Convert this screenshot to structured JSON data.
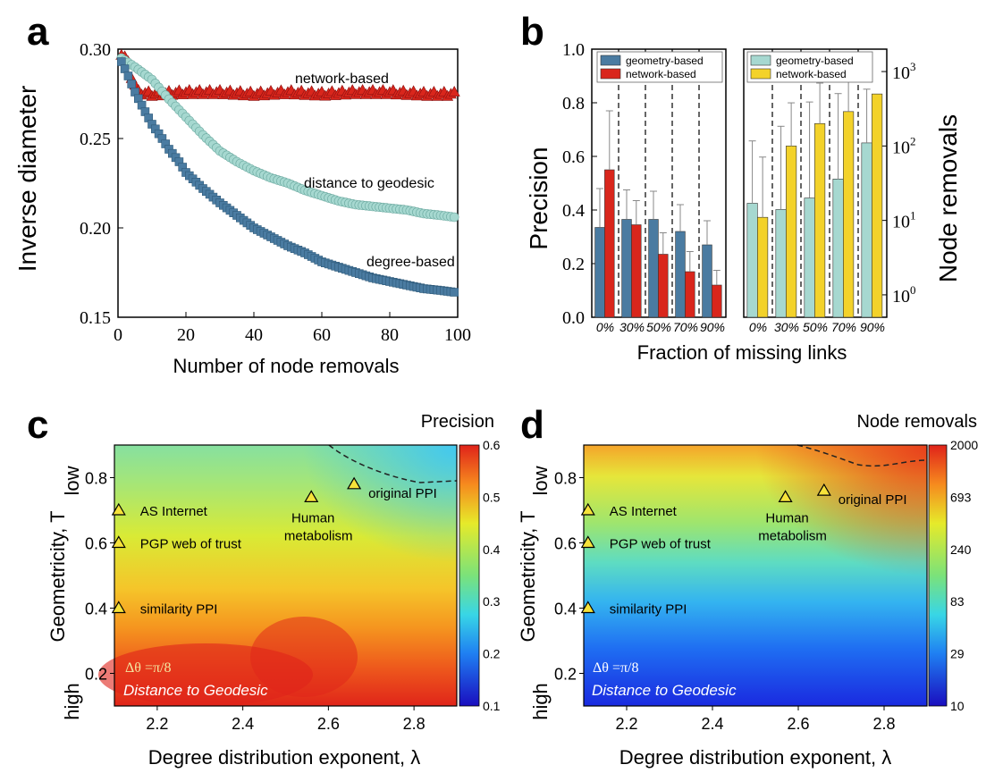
{
  "panels": {
    "a": "a",
    "b": "b",
    "c": "c",
    "d": "d"
  },
  "colors": {
    "degree": "#4a7ba1",
    "distance": "#a6d8d0",
    "network": "#d9261c",
    "geom_b": "#4a7ba1",
    "net_b": "#d9261c",
    "geom_b2": "#a6d8d0",
    "net_b2": "#f3d22a"
  },
  "chart_data": [
    {
      "id": "a",
      "type": "scatter",
      "xlabel": "Number of node removals",
      "ylabel": "Inverse diameter",
      "xlim": [
        0,
        100
      ],
      "ylim": [
        0.15,
        0.3
      ],
      "xticks": [
        "0",
        "20",
        "40",
        "60",
        "80",
        "100"
      ],
      "yticks": [
        "0.15",
        "0.20",
        "0.25",
        "0.30"
      ],
      "series": [
        {
          "name": "network-based",
          "marker": "triangle",
          "x": [
            1,
            2,
            3,
            4,
            5,
            6,
            10,
            20,
            30,
            40,
            50,
            60,
            70,
            80,
            90,
            99
          ],
          "y": [
            0.298,
            0.296,
            0.292,
            0.285,
            0.28,
            0.276,
            0.275,
            0.276,
            0.276,
            0.275,
            0.276,
            0.275,
            0.276,
            0.276,
            0.275,
            0.275
          ]
        },
        {
          "name": "distance to geodesic",
          "marker": "circle",
          "x": [
            1,
            5,
            10,
            15,
            20,
            25,
            30,
            35,
            40,
            45,
            50,
            55,
            60,
            65,
            70,
            75,
            80,
            85,
            90,
            95,
            99
          ],
          "y": [
            0.295,
            0.29,
            0.283,
            0.272,
            0.262,
            0.252,
            0.243,
            0.237,
            0.232,
            0.228,
            0.225,
            0.221,
            0.218,
            0.215,
            0.213,
            0.212,
            0.211,
            0.21,
            0.208,
            0.207,
            0.206
          ]
        },
        {
          "name": "degree-based",
          "marker": "square",
          "x": [
            1,
            3,
            5,
            8,
            10,
            13,
            15,
            18,
            20,
            25,
            30,
            35,
            40,
            45,
            50,
            55,
            60,
            65,
            70,
            75,
            80,
            85,
            90,
            95,
            99
          ],
          "y": [
            0.293,
            0.285,
            0.276,
            0.265,
            0.258,
            0.25,
            0.244,
            0.237,
            0.231,
            0.222,
            0.214,
            0.207,
            0.2,
            0.195,
            0.19,
            0.186,
            0.181,
            0.178,
            0.175,
            0.172,
            0.17,
            0.168,
            0.166,
            0.165,
            0.164
          ]
        }
      ],
      "annotations": [
        "network-based",
        "distance to geodesic",
        "degree-based"
      ]
    },
    {
      "id": "b_left",
      "type": "bar",
      "xlabel": "Fraction of missing links",
      "ylabel": "Precision",
      "ylim": [
        0,
        1.0
      ],
      "yticks": [
        "0.0",
        "0.2",
        "0.4",
        "0.6",
        "0.8",
        "1.0"
      ],
      "categories": [
        "0%",
        "30%",
        "50%",
        "70%",
        "90%"
      ],
      "series": [
        {
          "name": "geometry-based",
          "values": [
            0.335,
            0.365,
            0.365,
            0.32,
            0.27
          ],
          "errors": [
            0.145,
            0.11,
            0.105,
            0.1,
            0.09
          ]
        },
        {
          "name": "network-based",
          "values": [
            0.55,
            0.345,
            0.235,
            0.17,
            0.12
          ],
          "errors": [
            0.22,
            0.09,
            0.08,
            0.075,
            0.055
          ]
        }
      ]
    },
    {
      "id": "b_right",
      "type": "bar",
      "ylabel": "Node removals",
      "yscale": "log",
      "ylim": [
        0.5,
        2000
      ],
      "yticks": [
        "10^0",
        "10^1",
        "10^2",
        "10^3"
      ],
      "categories": [
        "0%",
        "30%",
        "50%",
        "70%",
        "90%"
      ],
      "series": [
        {
          "name": "geometry-based",
          "values": [
            17,
            14,
            20,
            36,
            110
          ],
          "errors": [
            100,
            170,
            370,
            470,
            470
          ]
        },
        {
          "name": "network-based",
          "values": [
            11,
            100,
            200,
            290,
            500
          ],
          "errors": [
            60,
            280,
            500,
            650,
            0
          ]
        }
      ]
    },
    {
      "id": "c",
      "type": "heatmap",
      "title": "Precision",
      "xlabel": "Degree distribution exponent, λ",
      "ylabel": "Geometricity, T",
      "xlim": [
        2.1,
        2.9
      ],
      "ylim": [
        0.1,
        0.9
      ],
      "xticks": [
        "2.2",
        "2.4",
        "2.6",
        "2.8"
      ],
      "yticks": [
        "0.2",
        "0.4",
        "0.6",
        "0.8"
      ],
      "ylabel_low": "low",
      "ylabel_high": "high",
      "colorbar": [
        "0.6",
        "0.5",
        "0.4",
        "0.3",
        "0.2",
        "0.1"
      ],
      "points": [
        {
          "label": "AS Internet",
          "x": 2.11,
          "y": 0.7
        },
        {
          "label": "PGP web of trust",
          "x": 2.11,
          "y": 0.6
        },
        {
          "label": "similarity PPI",
          "x": 2.11,
          "y": 0.4
        },
        {
          "label": "Human metabolism",
          "x": 2.56,
          "y": 0.74
        },
        {
          "label": "original PPI",
          "x": 2.66,
          "y": 0.78
        }
      ],
      "label_human": [
        "Human",
        "metabolism"
      ],
      "note": "Δθ =π/8",
      "method": "Distance to Geodesic"
    },
    {
      "id": "d",
      "type": "heatmap",
      "title": "Node removals",
      "xlabel": "Degree distribution exponent, λ",
      "ylabel": "Geometricity, T",
      "xlim": [
        2.1,
        2.9
      ],
      "ylim": [
        0.1,
        0.9
      ],
      "xticks": [
        "2.2",
        "2.4",
        "2.6",
        "2.8"
      ],
      "yticks": [
        "0.2",
        "0.4",
        "0.6",
        "0.8"
      ],
      "ylabel_low": "low",
      "ylabel_high": "high",
      "colorbar": [
        "2000",
        "693",
        "240",
        "83",
        "29",
        "10"
      ],
      "points": [
        {
          "label": "AS Internet",
          "x": 2.11,
          "y": 0.7
        },
        {
          "label": "PGP web of trust",
          "x": 2.11,
          "y": 0.6
        },
        {
          "label": "similarity PPI",
          "x": 2.11,
          "y": 0.4
        },
        {
          "label": "Human metabolism",
          "x": 2.57,
          "y": 0.74
        },
        {
          "label": "original PPI",
          "x": 2.66,
          "y": 0.76
        }
      ],
      "label_human": [
        "Human",
        "metabolism"
      ],
      "note": "Δθ =π/8",
      "method": "Distance to Geodesic"
    }
  ]
}
